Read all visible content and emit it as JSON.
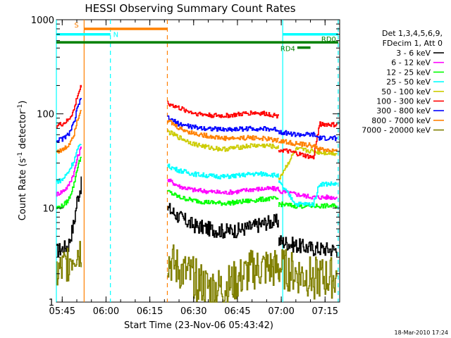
{
  "chart_data": {
    "type": "line",
    "title": "HESSI Observing Summary Count Rates",
    "xlabel": "Start Time (23-Nov-06 05:43:42)",
    "ylabel_main": "Count Rate (s",
    "ylabel_sup1": "-1",
    "ylabel_mid": " detector",
    "ylabel_sup2": "-1",
    "ylabel_end": ")",
    "yscale": "log",
    "ylim": [
      1,
      1000
    ],
    "xlim": [
      -2.0,
      95.0
    ],
    "x_unit": "minutes after 05:45",
    "x_ticks": [
      {
        "v": 0,
        "label": "05:45"
      },
      {
        "v": 15,
        "label": "06:00"
      },
      {
        "v": 30,
        "label": "06:15"
      },
      {
        "v": 45,
        "label": "06:30"
      },
      {
        "v": 60,
        "label": "06:45"
      },
      {
        "v": 75,
        "label": "07:00"
      },
      {
        "v": 90,
        "label": "07:15"
      }
    ],
    "y_ticks": [
      {
        "v": 1,
        "label": "1"
      },
      {
        "v": 10,
        "label": "10"
      },
      {
        "v": 100,
        "label": "100"
      },
      {
        "v": 1000,
        "label": "1000"
      }
    ],
    "legend_header": [
      "Det 1,3,4,5,6,9,",
      "FDecim 1, Att 0"
    ],
    "series": [
      {
        "name": "3 - 6 keV",
        "color": "#000000",
        "segments": [
          {
            "x": [
              -2,
              0,
              2,
              4,
              5,
              6.5
            ],
            "y": [
              3.5,
              3.7,
              4,
              7,
              12,
              18
            ]
          },
          {
            "x": [
              36,
              40,
              45,
              50,
              55,
              60,
              65,
              70,
              74
            ],
            "y": [
              10,
              8,
              6.5,
              6,
              5.7,
              5.8,
              6.3,
              7,
              7.2
            ]
          },
          {
            "x": [
              74,
              80,
              86,
              88,
              94
            ],
            "y": [
              4.5,
              4,
              3.7,
              3.7,
              3.6
            ]
          }
        ]
      },
      {
        "name": "6 - 12 keV",
        "color": "#ff00ff",
        "segments": [
          {
            "x": [
              -2,
              0,
              2,
              4,
              5,
              6.5
            ],
            "y": [
              14,
              15,
              17,
              24,
              33,
              45
            ]
          },
          {
            "x": [
              36,
              40,
              45,
              50,
              55,
              60,
              65,
              70,
              74
            ],
            "y": [
              20,
              17,
              15.5,
              15,
              14.5,
              15,
              15.8,
              16,
              16
            ]
          },
          {
            "x": [
              74,
              80,
              86,
              88,
              94
            ],
            "y": [
              15,
              14,
              13,
              13,
              13
            ]
          }
        ]
      },
      {
        "name": "12 - 25 keV",
        "color": "#00ff00",
        "segments": [
          {
            "x": [
              -2,
              0,
              2,
              4,
              5,
              6.5
            ],
            "y": [
              10,
              10.5,
              12,
              18,
              26,
              36
            ]
          },
          {
            "x": [
              36,
              40,
              45,
              50,
              55,
              60,
              65,
              70,
              74
            ],
            "y": [
              15,
              13,
              12,
              11.5,
              11.2,
              11.5,
              12,
              12.5,
              12.5
            ]
          },
          {
            "x": [
              74,
              80,
              86,
              88,
              94
            ],
            "y": [
              11,
              10.5,
              10.5,
              10.5,
              10.5
            ]
          }
        ]
      },
      {
        "name": "25 - 50 keV",
        "color": "#00ffff",
        "segments": [
          {
            "x": [
              -2,
              0,
              2,
              4,
              5,
              6.5
            ],
            "y": [
              19,
              20,
              24,
              32,
              40,
              50
            ]
          },
          {
            "x": [
              36,
              40,
              45,
              50,
              55,
              60,
              65,
              70,
              74
            ],
            "y": [
              28,
              25,
              23,
              22,
              21.5,
              22,
              23,
              23,
              22
            ]
          },
          {
            "x": [
              74,
              80,
              86,
              88,
              94
            ],
            "y": [
              19,
              11,
              11,
              18,
              18
            ]
          }
        ]
      },
      {
        "name": "50 - 100 keV",
        "color": "#cccc00",
        "segments": [
          {
            "x": [
              36,
              40,
              45,
              50,
              55,
              60,
              65,
              70,
              74
            ],
            "y": [
              65,
              56,
              48,
              44,
              42,
              44,
              46,
              46,
              44
            ]
          },
          {
            "x": [
              74,
              80,
              86,
              88,
              94
            ],
            "y": [
              20,
              42,
              40,
              39,
              38
            ]
          }
        ]
      },
      {
        "name": "100 - 300 keV",
        "color": "#ff0000",
        "segments": [
          {
            "x": [
              -2,
              0,
              2,
              4,
              5,
              6.5
            ],
            "y": [
              75,
              78,
              85,
              110,
              150,
              200
            ]
          },
          {
            "x": [
              36,
              40,
              45,
              50,
              55,
              60,
              65,
              70,
              74
            ],
            "y": [
              130,
              115,
              102,
              97,
              95,
              98,
              103,
              100,
              95
            ]
          },
          {
            "x": [
              74,
              80,
              86,
              88,
              94
            ],
            "y": [
              42,
              38,
              34,
              78,
              76
            ]
          }
        ]
      },
      {
        "name": "300 - 800 keV",
        "color": "#0000ff",
        "segments": [
          {
            "x": [
              -2,
              0,
              2,
              4,
              5,
              6.5
            ],
            "y": [
              52,
              54,
              60,
              80,
              110,
              150
            ]
          },
          {
            "x": [
              36,
              40,
              45,
              50,
              55,
              60,
              65,
              70,
              74
            ],
            "y": [
              90,
              78,
              72,
              70,
              68,
              69,
              70,
              69,
              68
            ]
          },
          {
            "x": [
              74,
              80,
              86,
              88,
              94
            ],
            "y": [
              65,
              60,
              60,
              55,
              55
            ]
          }
        ]
      },
      {
        "name": "800 - 7000 keV",
        "color": "#ff8000",
        "segments": [
          {
            "x": [
              -2,
              0,
              2,
              4,
              5,
              6.5
            ],
            "y": [
              40,
              41,
              46,
              62,
              85,
              115
            ]
          },
          {
            "x": [
              36,
              40,
              45,
              50,
              55,
              60,
              65,
              70,
              74
            ],
            "y": [
              85,
              70,
              62,
              58,
              55,
              55,
              56,
              54,
              52
            ]
          },
          {
            "x": [
              74,
              80,
              86,
              88,
              94
            ],
            "y": [
              52,
              48,
              46,
              42,
              40
            ]
          }
        ]
      },
      {
        "name": "7000 - 20000 keV",
        "color": "#808000",
        "segments": [
          {
            "x": [
              -2,
              0,
              2,
              4,
              5,
              6.5
            ],
            "y": [
              2,
              2.2,
              2.8,
              3.3,
              3.5,
              3.6
            ]
          },
          {
            "x": [
              36,
              40,
              45,
              50,
              55,
              60,
              65,
              70,
              74
            ],
            "y": [
              2.8,
              2.2,
              1.8,
              1.4,
              1.4,
              1.7,
              2.2,
              2.3,
              2.2
            ]
          },
          {
            "x": [
              74,
              80,
              86,
              88,
              94
            ],
            "y": [
              2.3,
              2,
              1.8,
              1.8,
              1.8
            ]
          }
        ]
      }
    ],
    "vlines": [
      {
        "x": -2,
        "color": "#00ffff",
        "style": "solid"
      },
      {
        "x": 7.5,
        "color": "#ff8000",
        "style": "solid"
      },
      {
        "x": 16.5,
        "color": "#00ffff",
        "style": "dashed"
      },
      {
        "x": 36.0,
        "color": "#ff8000",
        "style": "dashed"
      },
      {
        "x": 75.5,
        "color": "#00ffff",
        "style": "solid"
      },
      {
        "x": 94.5,
        "color": "#00ffff",
        "style": "dashed"
      }
    ],
    "bars": [
      {
        "label": "S",
        "color": "#ff8000",
        "x0": 7.5,
        "x1": 36.0,
        "y": 800
      },
      {
        "label": "N",
        "color": "#00ffff",
        "x0": -2,
        "x1": 16.5,
        "y": 700
      },
      {
        "label": "",
        "color": "#00ffff",
        "x0": 75.5,
        "x1": 94.5,
        "y": 700
      },
      {
        "label": "",
        "color": "#008000",
        "x0": -2,
        "x1": 94.5,
        "y": 575
      },
      {
        "label": "RD0",
        "color": "#008000",
        "x0": 94.5,
        "x1": 94.5,
        "y": 575
      },
      {
        "label": "RD4",
        "color": "#008000",
        "x0": 80.5,
        "x1": 85.0,
        "y": 505
      }
    ],
    "footer_date": "18-Mar-2010 17:24"
  }
}
